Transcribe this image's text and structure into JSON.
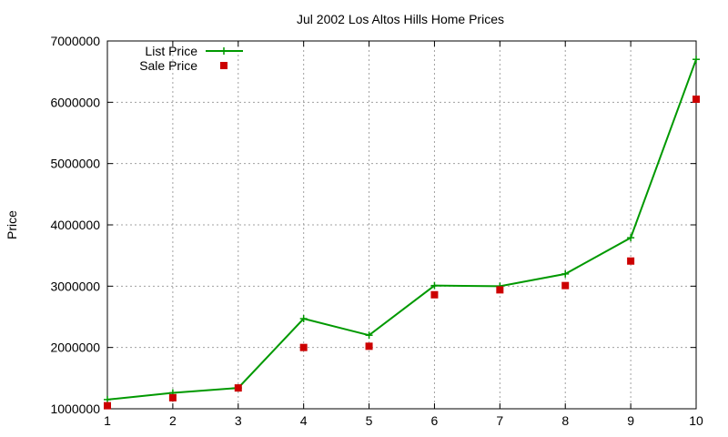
{
  "chart_data": {
    "type": "line",
    "title": "Jul 2002 Los Altos Hills Home Prices",
    "xlabel": "",
    "ylabel": "Price",
    "xlim": [
      1,
      10
    ],
    "ylim": [
      1000000,
      7000000
    ],
    "x_ticks": [
      "1",
      "2",
      "3",
      "4",
      "5",
      "6",
      "7",
      "8",
      "9",
      "10"
    ],
    "y_ticks": [
      "1000000",
      "2000000",
      "3000000",
      "4000000",
      "5000000",
      "6000000",
      "7000000"
    ],
    "grid": true,
    "legend_position": "top-left",
    "x": [
      1,
      2,
      3,
      4,
      5,
      6,
      7,
      8,
      9,
      10
    ],
    "series": [
      {
        "name": "List Price",
        "style": "linespoints",
        "marker": "plus",
        "color": "#009900",
        "values": [
          1150000,
          1260000,
          1340000,
          2470000,
          2200000,
          3010000,
          3000000,
          3200000,
          3790000,
          6700000
        ]
      },
      {
        "name": "Sale Price",
        "style": "points",
        "marker": "square",
        "color": "#cc0000",
        "values": [
          1050000,
          1180000,
          1340000,
          2000000,
          2020000,
          2860000,
          2940000,
          3010000,
          3410000,
          6050000
        ]
      }
    ]
  }
}
